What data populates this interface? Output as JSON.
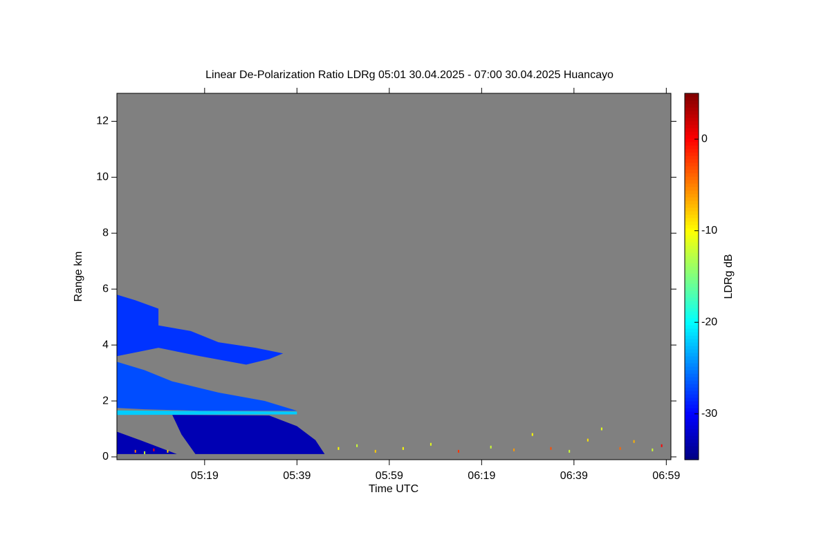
{
  "chart_data": {
    "type": "heatmap",
    "title": "Linear De-Polarization Ratio LDRg   05:01 30.04.2025 - 07:00 30.04.2025 Huancayo",
    "x_label": "Time UTC",
    "y_label": "Range km",
    "colorbar_label": "LDRg dB",
    "xlim": [
      300,
      420
    ],
    "xticks": [
      {
        "value": 319,
        "label": "05:19"
      },
      {
        "value": 339,
        "label": "05:39"
      },
      {
        "value": 359,
        "label": "05:59"
      },
      {
        "value": 379,
        "label": "06:19"
      },
      {
        "value": 399,
        "label": "06:39"
      },
      {
        "value": 419,
        "label": "06:59"
      }
    ],
    "ylim": [
      -0.1,
      13
    ],
    "yticks": [
      0,
      2,
      4,
      6,
      8,
      10,
      12
    ],
    "clim": [
      -35,
      5
    ],
    "cticks": [
      0,
      -10,
      -20,
      -30
    ],
    "colormap": "jet",
    "no_data_color": "#808080",
    "regions": [
      {
        "value": -28,
        "points": [
          [
            300,
            5.8
          ],
          [
            304,
            5.6
          ],
          [
            309,
            5.3
          ],
          [
            309,
            4.7
          ],
          [
            316,
            4.5
          ],
          [
            322,
            4.1
          ],
          [
            330,
            3.9
          ],
          [
            336,
            3.7
          ],
          [
            333,
            3.5
          ],
          [
            328,
            3.3
          ],
          [
            318,
            3.6
          ],
          [
            309,
            3.9
          ],
          [
            300,
            3.6
          ]
        ]
      },
      {
        "value": -27,
        "points": [
          [
            300,
            3.4
          ],
          [
            306,
            3.1
          ],
          [
            312,
            2.7
          ],
          [
            322,
            2.3
          ],
          [
            332,
            2.0
          ],
          [
            339,
            1.65
          ],
          [
            318,
            1.65
          ],
          [
            306,
            1.7
          ],
          [
            300,
            1.75
          ]
        ]
      },
      {
        "value": -22,
        "points": [
          [
            300,
            1.5
          ],
          [
            339,
            1.52
          ],
          [
            339,
            1.62
          ],
          [
            300,
            1.66
          ]
        ]
      },
      {
        "value": -33,
        "points": [
          [
            312,
            1.5
          ],
          [
            333,
            1.48
          ],
          [
            339,
            1.1
          ],
          [
            343,
            0.6
          ],
          [
            345,
            0.1
          ],
          [
            317,
            0.1
          ],
          [
            314,
            0.8
          ]
        ]
      },
      {
        "value": -33,
        "points": [
          [
            300,
            0.9
          ],
          [
            305,
            0.6
          ],
          [
            309,
            0.35
          ],
          [
            313,
            0.1
          ],
          [
            300,
            0.1
          ]
        ]
      }
    ],
    "speckles": [
      [
        304,
        0.2,
        -5
      ],
      [
        306,
        0.15,
        -12
      ],
      [
        308,
        0.25,
        0
      ],
      [
        311,
        0.2,
        -8
      ],
      [
        348,
        0.3,
        -10
      ],
      [
        352,
        0.4,
        -12
      ],
      [
        356,
        0.2,
        -8
      ],
      [
        362,
        0.3,
        -10
      ],
      [
        368,
        0.45,
        -11
      ],
      [
        374,
        0.2,
        -2
      ],
      [
        381,
        0.35,
        -12
      ],
      [
        386,
        0.25,
        -6
      ],
      [
        390,
        0.8,
        -10
      ],
      [
        394,
        0.3,
        -3
      ],
      [
        398,
        0.2,
        -12
      ],
      [
        402,
        0.6,
        -9
      ],
      [
        405,
        1.0,
        -11
      ],
      [
        409,
        0.3,
        -4
      ],
      [
        412,
        0.55,
        -7
      ],
      [
        416,
        0.25,
        -12
      ],
      [
        418,
        0.4,
        0
      ]
    ]
  }
}
